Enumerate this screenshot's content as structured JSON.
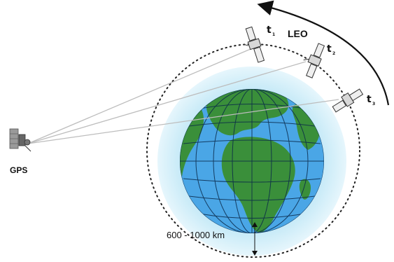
{
  "labels": {
    "gps": "GPS",
    "leo": "LEO",
    "t1": "t",
    "t1_sub": "1",
    "t2": "t",
    "t2_sub": "2",
    "t3": "t",
    "t3_sub": "3",
    "altitude": "600 - 1000 km"
  },
  "colors": {
    "ocean": "#4aa6e6",
    "land": "#3a8f3a",
    "atmosphere": "#cfeef8",
    "grid": "#0b2a4a",
    "orbit": "#222222",
    "link": "#bfbfbf"
  },
  "icons": {
    "gps_satellite": "gps-satellite-icon",
    "leo_satellite": "leo-satellite-icon",
    "earth": "earth-globe-icon",
    "motion_arrow": "orbit-direction-arrow"
  }
}
